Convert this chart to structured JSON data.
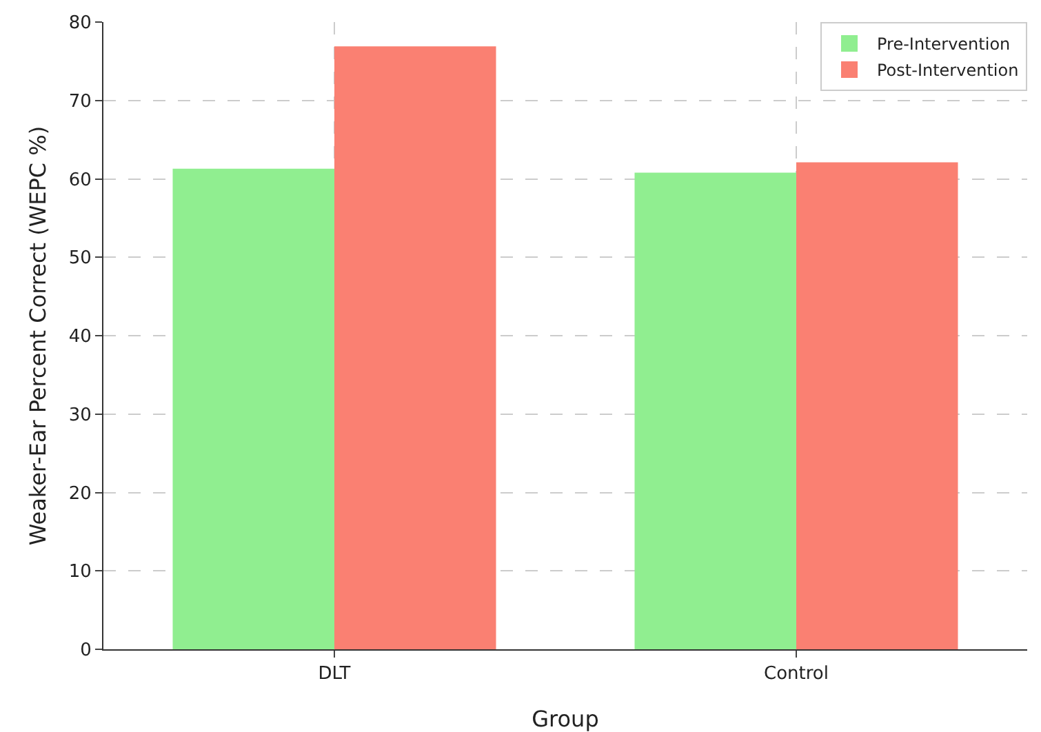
{
  "chart_data": {
    "type": "bar",
    "xlabel": "Group",
    "ylabel": "Weaker-Ear Percent Correct (WEPC %)",
    "categories": [
      "DLT",
      "Control"
    ],
    "series": [
      {
        "name": "Pre-Intervention",
        "color": "#90ee90",
        "values": [
          61.3,
          60.8
        ]
      },
      {
        "name": "Post-Intervention",
        "color": "#fa8072",
        "values": [
          76.9,
          62.1
        ]
      }
    ],
    "ylim": [
      0,
      80
    ],
    "yticks": [
      0,
      10,
      20,
      30,
      40,
      50,
      60,
      70,
      80
    ],
    "grid": true,
    "legend": "top right"
  }
}
